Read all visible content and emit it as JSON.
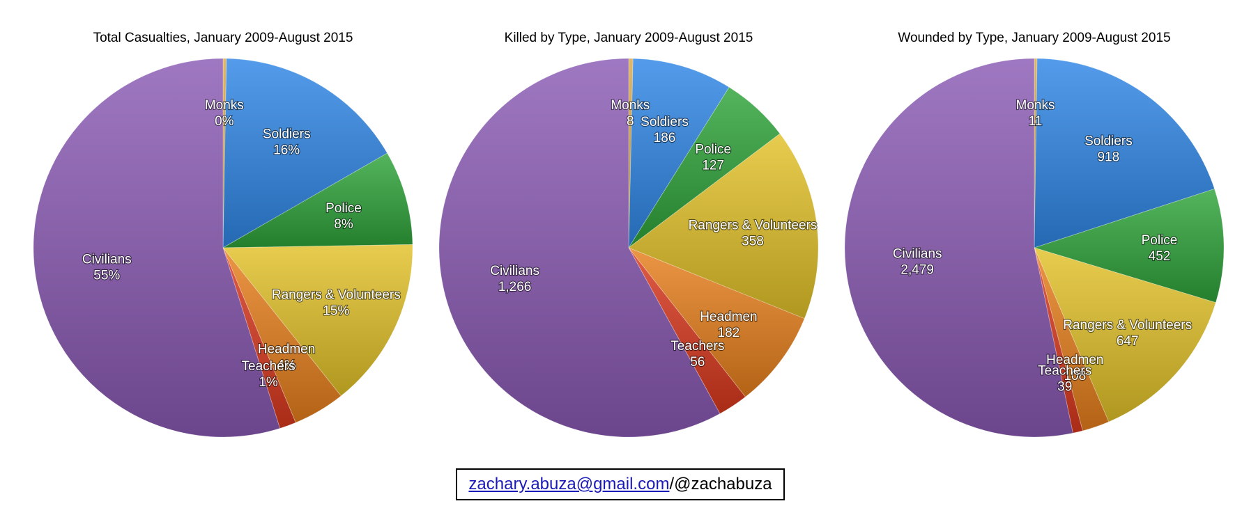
{
  "colors": {
    "Monks": "#d8a84a",
    "Soldiers": "#2f86e6",
    "Police": "#2ea33a",
    "Rangers & Volunteers": "#e2c128",
    "Headmen": "#e77f1c",
    "Teachers": "#d9381e",
    "Civilians": "#8a5ab4"
  },
  "chart_data": [
    {
      "type": "pie",
      "title": "Total Casualties, January 2009-August 2015",
      "slices": [
        {
          "label": "Monks",
          "value": 0.29,
          "display": "0%"
        },
        {
          "label": "Soldiers",
          "value": 16.38,
          "display": "16%"
        },
        {
          "label": "Police",
          "value": 8.06,
          "display": "8%"
        },
        {
          "label": "Rangers & Volunteers",
          "value": 14.58,
          "display": "15%"
        },
        {
          "label": "Headmen",
          "value": 4.43,
          "display": "4%"
        },
        {
          "label": "Teachers",
          "value": 1.41,
          "display": "1%"
        },
        {
          "label": "Civilians",
          "value": 54.85,
          "display": "55%"
        }
      ]
    },
    {
      "type": "pie",
      "title": "Killed by Type, January 2009-August 2015",
      "slices": [
        {
          "label": "Monks",
          "value": 8,
          "display": "8"
        },
        {
          "label": "Soldiers",
          "value": 186,
          "display": "186"
        },
        {
          "label": "Police",
          "value": 127,
          "display": "127"
        },
        {
          "label": "Rangers & Volunteers",
          "value": 358,
          "display": "358"
        },
        {
          "label": "Headmen",
          "value": 182,
          "display": "182"
        },
        {
          "label": "Teachers",
          "value": 56,
          "display": "56"
        },
        {
          "label": "Civilians",
          "value": 1266,
          "display": "1,266"
        }
      ]
    },
    {
      "type": "pie",
      "title": "Wounded by Type, January 2009-August 2015",
      "slices": [
        {
          "label": "Monks",
          "value": 11,
          "display": "11"
        },
        {
          "label": "Soldiers",
          "value": 918,
          "display": "918"
        },
        {
          "label": "Police",
          "value": 452,
          "display": "452"
        },
        {
          "label": "Rangers & Volunteers",
          "value": 647,
          "display": "647"
        },
        {
          "label": "Headmen",
          "value": 108,
          "display": "108"
        },
        {
          "label": "Teachers",
          "value": 39,
          "display": "39"
        },
        {
          "label": "Civilians",
          "value": 2479,
          "display": "2,479"
        }
      ]
    }
  ],
  "credit": {
    "email": "zachary.abuza@gmail.com",
    "handle": "/@zachabuza"
  }
}
